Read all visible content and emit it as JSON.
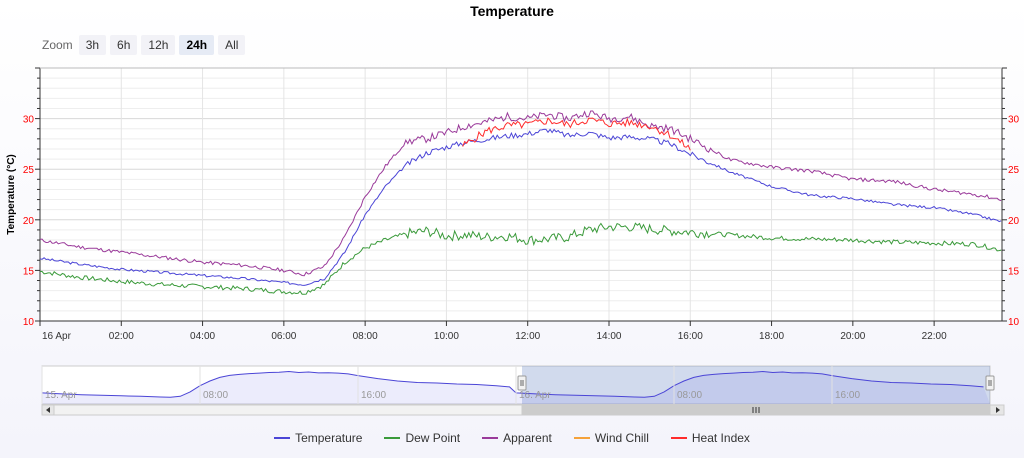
{
  "title": "Temperature",
  "zoom": {
    "label": "Zoom",
    "buttons": [
      "3h",
      "6h",
      "12h",
      "24h",
      "All"
    ],
    "selected": "24h"
  },
  "chart_data": {
    "type": "line",
    "title": "Temperature",
    "ylabel": "Temperature (°C)",
    "xlabel": "",
    "ylim": [
      10,
      35
    ],
    "xlim": [
      "16 Apr 00:00",
      "16 Apr 23:40"
    ],
    "x_tick_labels": [
      "16 Apr",
      "02:00",
      "04:00",
      "06:00",
      "08:00",
      "10:00",
      "12:00",
      "14:00",
      "16:00",
      "18:00",
      "20:00",
      "22:00"
    ],
    "y_tick_labels": [
      "10",
      "15",
      "20",
      "25",
      "30"
    ],
    "grid": true,
    "legend_position": "bottom",
    "x_hours": [
      0,
      1,
      2,
      3,
      4,
      5,
      6,
      6.5,
      7,
      7.5,
      8,
      8.5,
      9,
      9.5,
      10,
      10.5,
      11,
      11.5,
      12,
      12.5,
      13,
      13.5,
      14,
      14.5,
      15,
      15.5,
      16,
      17,
      18,
      19,
      20,
      21,
      22,
      23,
      23.67
    ],
    "series": [
      {
        "name": "Temperature",
        "color": "#4b45d6",
        "values": [
          16.2,
          15.6,
          15.1,
          14.8,
          14.5,
          14.2,
          13.8,
          13.6,
          14.2,
          16.8,
          20.5,
          23.3,
          25.4,
          26.6,
          27.2,
          27.7,
          28.0,
          28.3,
          28.5,
          28.9,
          28.3,
          28.6,
          28.1,
          28.2,
          28.0,
          27.5,
          26.5,
          24.7,
          23.3,
          22.4,
          22.1,
          21.5,
          21.2,
          20.5,
          19.8
        ]
      },
      {
        "name": "Dew Point",
        "color": "#3a9a3a",
        "values": [
          14.9,
          14.3,
          13.9,
          13.6,
          13.4,
          13.2,
          12.9,
          12.8,
          13.6,
          15.8,
          17.2,
          18.0,
          18.6,
          18.9,
          18.4,
          18.5,
          18.3,
          18.4,
          18.0,
          18.1,
          18.3,
          19.0,
          19.3,
          19.3,
          19.1,
          18.9,
          18.8,
          18.5,
          18.2,
          18.1,
          18.0,
          17.8,
          17.7,
          17.6,
          17.0
        ]
      },
      {
        "name": "Apparent",
        "color": "#9a3a9a",
        "values": [
          18.0,
          17.3,
          16.8,
          16.3,
          15.8,
          15.5,
          15.0,
          14.6,
          15.4,
          18.3,
          22.3,
          25.3,
          27.7,
          28.0,
          28.6,
          29.3,
          29.7,
          30.2,
          30.0,
          30.4,
          30.0,
          30.6,
          30.0,
          30.2,
          29.3,
          29.0,
          28.0,
          25.9,
          25.2,
          24.8,
          24.0,
          23.8,
          23.0,
          22.5,
          22.0
        ]
      },
      {
        "name": "Wind Chill",
        "color": "#f5a23a",
        "values": []
      },
      {
        "name": "Heat Index",
        "color": "#ff2b2b",
        "segment_x": [
          10.4,
          11,
          11.5,
          12,
          12.5,
          13,
          13.5,
          14,
          14.5,
          15,
          15.5,
          16
        ],
        "values": [
          27.3,
          28.8,
          29.3,
          29.4,
          29.8,
          29.4,
          29.9,
          29.5,
          29.6,
          29.3,
          28.4,
          27.0
        ]
      }
    ],
    "navigator": {
      "x_tick_labels": [
        "15. Apr",
        "08:00",
        "16:00",
        "16. Apr",
        "08:00",
        "16:00"
      ],
      "selected_range": [
        "16 Apr 00:00",
        "16 Apr 23:40"
      ]
    }
  }
}
